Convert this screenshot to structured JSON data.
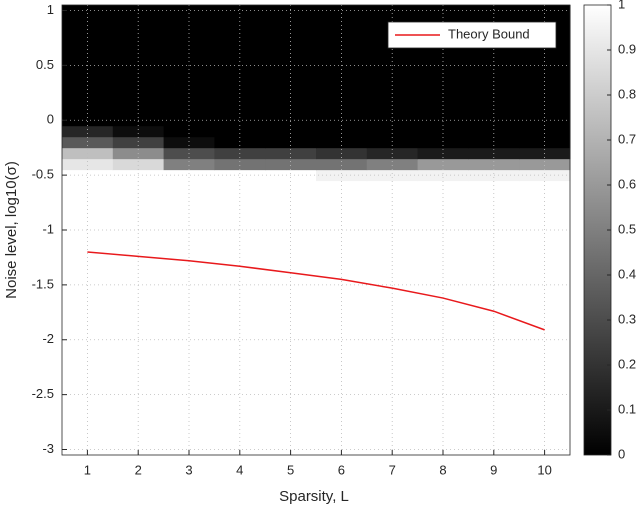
{
  "chart_data": {
    "type": "heatmap",
    "xlabel": "Sparsity, L",
    "ylabel": "Noise level, log10(σ)",
    "x": [
      1,
      2,
      3,
      4,
      5,
      6,
      7,
      8,
      9,
      10
    ],
    "y": [
      -3,
      -2.9,
      -2.8,
      -2.7,
      -2.6,
      -2.5,
      -2.4,
      -2.3,
      -2.2,
      -2.1,
      -2,
      -1.9,
      -1.8,
      -1.7,
      -1.6,
      -1.5,
      -1.4,
      -1.3,
      -1.2,
      -1.1,
      -1,
      -0.9,
      -0.8,
      -0.7,
      -0.6,
      -0.5,
      -0.4,
      -0.3,
      -0.2,
      -0.1,
      0,
      0.1,
      0.2,
      0.3,
      0.4,
      0.5,
      0.6,
      0.7,
      0.8,
      0.9,
      1
    ],
    "z": [
      [
        1,
        1,
        1,
        1,
        1,
        1,
        1,
        1,
        1,
        1
      ],
      [
        1,
        1,
        1,
        1,
        1,
        1,
        1,
        1,
        1,
        1
      ],
      [
        1,
        1,
        1,
        1,
        1,
        1,
        1,
        1,
        1,
        1
      ],
      [
        1,
        1,
        1,
        1,
        1,
        1,
        1,
        1,
        1,
        1
      ],
      [
        1,
        1,
        1,
        1,
        1,
        1,
        1,
        1,
        1,
        1
      ],
      [
        1,
        1,
        1,
        1,
        1,
        1,
        1,
        1,
        1,
        1
      ],
      [
        1,
        1,
        1,
        1,
        1,
        1,
        1,
        1,
        1,
        1
      ],
      [
        1,
        1,
        1,
        1,
        1,
        1,
        1,
        1,
        1,
        1
      ],
      [
        1,
        1,
        1,
        1,
        1,
        1,
        1,
        1,
        1,
        1
      ],
      [
        1,
        1,
        1,
        1,
        1,
        1,
        1,
        1,
        1,
        1
      ],
      [
        1,
        1,
        1,
        1,
        1,
        1,
        1,
        1,
        1,
        1
      ],
      [
        1,
        1,
        1,
        1,
        1,
        1,
        1,
        1,
        1,
        1
      ],
      [
        1,
        1,
        1,
        1,
        1,
        1,
        1,
        1,
        1,
        1
      ],
      [
        1,
        1,
        1,
        1,
        1,
        1,
        1,
        1,
        1,
        1
      ],
      [
        1,
        1,
        1,
        1,
        1,
        1,
        1,
        1,
        1,
        1
      ],
      [
        1,
        1,
        1,
        1,
        1,
        1,
        1,
        1,
        1,
        1
      ],
      [
        1,
        1,
        1,
        1,
        1,
        1,
        1,
        1,
        1,
        1
      ],
      [
        1,
        1,
        1,
        1,
        1,
        1,
        1,
        1,
        1,
        1
      ],
      [
        1,
        1,
        1,
        1,
        1,
        1,
        1,
        1,
        1,
        1
      ],
      [
        1,
        1,
        1,
        1,
        1,
        1,
        1,
        1,
        1,
        1
      ],
      [
        1,
        1,
        1,
        1,
        1,
        1,
        1,
        1,
        1,
        1
      ],
      [
        1,
        1,
        1,
        1,
        1,
        1,
        1,
        1,
        1,
        1
      ],
      [
        1,
        1,
        1,
        1,
        1,
        1,
        1,
        1,
        1,
        1
      ],
      [
        1,
        1,
        1,
        1,
        1,
        1,
        1,
        1,
        1,
        1
      ],
      [
        1,
        1,
        1,
        1,
        1,
        1,
        1,
        1,
        1,
        1
      ],
      [
        1,
        1,
        1,
        1,
        1,
        0.95,
        0.95,
        0.95,
        0.95,
        0.95
      ],
      [
        0.9,
        0.85,
        0.5,
        0.45,
        0.45,
        0.45,
        0.5,
        0.6,
        0.6,
        0.6
      ],
      [
        0.75,
        0.55,
        0.3,
        0.25,
        0.25,
        0.2,
        0.15,
        0.1,
        0.1,
        0.1
      ],
      [
        0.35,
        0.25,
        0.05,
        0,
        0,
        0,
        0,
        0,
        0,
        0
      ],
      [
        0.15,
        0.05,
        0,
        0,
        0,
        0,
        0,
        0,
        0,
        0
      ],
      [
        0,
        0,
        0,
        0,
        0,
        0,
        0,
        0,
        0,
        0
      ],
      [
        0,
        0,
        0,
        0,
        0,
        0,
        0,
        0,
        0,
        0
      ],
      [
        0,
        0,
        0,
        0,
        0,
        0,
        0,
        0,
        0,
        0
      ],
      [
        0,
        0,
        0,
        0,
        0,
        0,
        0,
        0,
        0,
        0
      ],
      [
        0,
        0,
        0,
        0,
        0,
        0,
        0,
        0,
        0,
        0
      ],
      [
        0,
        0,
        0,
        0,
        0,
        0,
        0,
        0,
        0,
        0
      ],
      [
        0,
        0,
        0,
        0,
        0,
        0,
        0,
        0,
        0,
        0
      ],
      [
        0,
        0,
        0,
        0,
        0,
        0,
        0,
        0,
        0,
        0
      ],
      [
        0,
        0,
        0,
        0,
        0,
        0,
        0,
        0,
        0,
        0
      ],
      [
        0,
        0,
        0,
        0,
        0,
        0,
        0,
        0,
        0,
        0
      ],
      [
        0,
        0,
        0,
        0,
        0,
        0,
        0,
        0,
        0,
        0
      ]
    ],
    "series": [
      {
        "name": "Theory Bound",
        "color": "#e8191c",
        "values": [
          -1.2,
          -1.24,
          -1.28,
          -1.33,
          -1.39,
          -1.45,
          -1.53,
          -1.62,
          -1.74,
          -1.91
        ]
      }
    ],
    "xlim": [
      0.5,
      10.5
    ],
    "ylim": [
      -3.05,
      1.05
    ],
    "xticks": [
      1,
      2,
      3,
      4,
      5,
      6,
      7,
      8,
      9,
      10
    ],
    "yticks": [
      -3,
      -2.5,
      -2,
      -1.5,
      -1,
      -0.5,
      0,
      0.5,
      1
    ],
    "clim": [
      0,
      1
    ],
    "cticks": [
      0,
      0.1,
      0.2,
      0.3,
      0.4,
      0.5,
      0.6,
      0.7,
      0.8,
      0.9,
      1
    ],
    "grid": true,
    "legend": "upper right"
  }
}
